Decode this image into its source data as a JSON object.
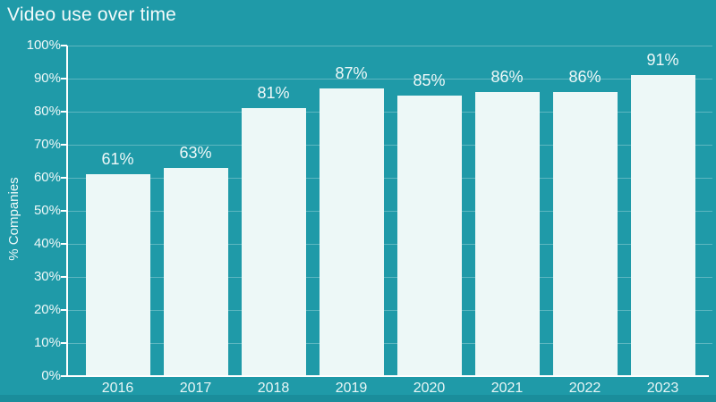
{
  "chart_data": {
    "type": "bar",
    "title": "Video use over time",
    "xlabel": "",
    "ylabel": "% Companies",
    "categories": [
      "2016",
      "2017",
      "2018",
      "2019",
      "2020",
      "2021",
      "2022",
      "2023"
    ],
    "values": [
      61,
      63,
      81,
      87,
      85,
      86,
      86,
      91
    ],
    "value_labels": [
      "61%",
      "63%",
      "81%",
      "87%",
      "85%",
      "86%",
      "86%",
      "91%"
    ],
    "ylim": [
      0,
      100
    ],
    "ytick_step": 10,
    "ytick_labels": [
      "0%",
      "10%",
      "20%",
      "30%",
      "40%",
      "50%",
      "60%",
      "70%",
      "80%",
      "90%",
      "100%"
    ],
    "grid": true,
    "legend": "none",
    "colors": {
      "background": "#1f9aa8",
      "bar_fill": "#edf8f7",
      "axis": "#ffffff",
      "gridline": "rgba(255,255,255,0.28)",
      "title_text": "#f4fbfb",
      "label_text": "#eef8f8",
      "bottom_strip": "#1a8d9b"
    }
  }
}
